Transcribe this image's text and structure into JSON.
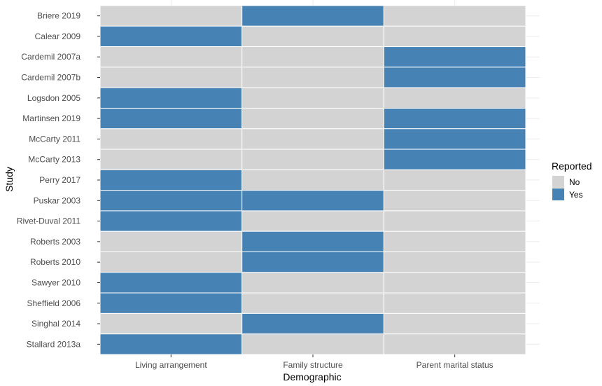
{
  "chart_data": {
    "type": "heatmap",
    "title": "",
    "xlabel": "Demographic",
    "ylabel": "Study",
    "x_categories": [
      "Living arrangement",
      "Family structure",
      "Parent marital status"
    ],
    "y_categories": [
      "Briere 2019",
      "Calear 2009",
      "Cardemil 2007a",
      "Cardemil 2007b",
      "Logsdon 2005",
      "Martinsen 2019",
      "McCarty 2011",
      "McCarty 2013",
      "Perry 2017",
      "Puskar 2003",
      "Rivet-Duval 2011",
      "Roberts 2003",
      "Roberts 2010",
      "Sawyer 2010",
      "Sheffield 2006",
      "Singhal 2014",
      "Stallard 2013a"
    ],
    "values": [
      [
        "No",
        "Yes",
        "No"
      ],
      [
        "Yes",
        "No",
        "No"
      ],
      [
        "No",
        "No",
        "Yes"
      ],
      [
        "No",
        "No",
        "Yes"
      ],
      [
        "Yes",
        "No",
        "No"
      ],
      [
        "Yes",
        "No",
        "Yes"
      ],
      [
        "No",
        "No",
        "Yes"
      ],
      [
        "No",
        "No",
        "Yes"
      ],
      [
        "Yes",
        "No",
        "No"
      ],
      [
        "Yes",
        "Yes",
        "No"
      ],
      [
        "Yes",
        "No",
        "No"
      ],
      [
        "No",
        "Yes",
        "No"
      ],
      [
        "No",
        "Yes",
        "No"
      ],
      [
        "Yes",
        "No",
        "No"
      ],
      [
        "Yes",
        "No",
        "No"
      ],
      [
        "No",
        "Yes",
        "No"
      ],
      [
        "Yes",
        "No",
        "No"
      ]
    ],
    "legend": {
      "title": "Reported",
      "position": "right",
      "items": [
        {
          "label": "No",
          "color": "#d3d3d3"
        },
        {
          "label": "Yes",
          "color": "#4682b4"
        }
      ]
    },
    "grid": true
  }
}
